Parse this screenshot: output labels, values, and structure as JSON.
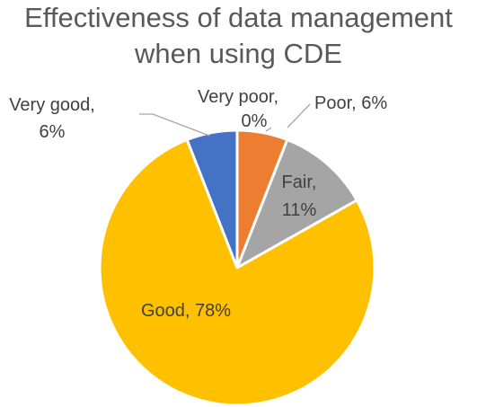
{
  "chart_data": {
    "type": "pie",
    "title_lines": [
      "Effectiveness of data management",
      "when using CDE"
    ],
    "categories": [
      "Very poor",
      "Poor",
      "Fair",
      "Good",
      "Very good"
    ],
    "values": [
      0,
      6,
      11,
      78,
      6
    ],
    "labels": [
      "Very poor, 0%",
      "Poor, 6%",
      "Fair, 11%",
      "Good, 78%",
      "Very good, 6%"
    ],
    "colors": [
      "#4472C4",
      "#ED7D31",
      "#A5A5A5",
      "#FFC000",
      "#4472C4"
    ],
    "legend": "none",
    "data_labels": "category-and-percent"
  }
}
